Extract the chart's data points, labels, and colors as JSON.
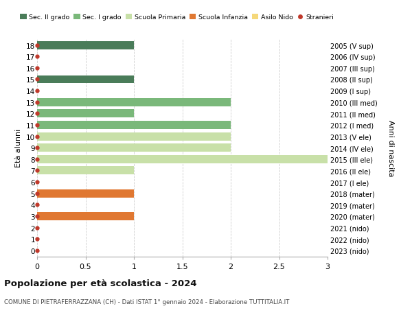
{
  "ages": [
    18,
    17,
    16,
    15,
    14,
    13,
    12,
    11,
    10,
    9,
    8,
    7,
    6,
    5,
    4,
    3,
    2,
    1,
    0
  ],
  "right_labels": [
    "2005 (V sup)",
    "2006 (IV sup)",
    "2007 (III sup)",
    "2008 (II sup)",
    "2009 (I sup)",
    "2010 (III med)",
    "2011 (II med)",
    "2012 (I med)",
    "2013 (V ele)",
    "2014 (IV ele)",
    "2015 (III ele)",
    "2016 (II ele)",
    "2017 (I ele)",
    "2018 (mater)",
    "2019 (mater)",
    "2020 (mater)",
    "2021 (nido)",
    "2022 (nido)",
    "2023 (nido)"
  ],
  "bars": [
    {
      "age": 18,
      "value": 1.0,
      "color": "#4a7c59"
    },
    {
      "age": 15,
      "value": 1.0,
      "color": "#4a7c59"
    },
    {
      "age": 13,
      "value": 2.0,
      "color": "#7ab87a"
    },
    {
      "age": 12,
      "value": 1.0,
      "color": "#7ab87a"
    },
    {
      "age": 11,
      "value": 2.0,
      "color": "#7ab87a"
    },
    {
      "age": 10,
      "value": 2.0,
      "color": "#c8e0a8"
    },
    {
      "age": 9,
      "value": 2.0,
      "color": "#c8e0a8"
    },
    {
      "age": 8,
      "value": 3.0,
      "color": "#c8e0a8"
    },
    {
      "age": 7,
      "value": 1.0,
      "color": "#c8e0a8"
    },
    {
      "age": 5,
      "value": 1.0,
      "color": "#e07832"
    },
    {
      "age": 3,
      "value": 1.0,
      "color": "#e07832"
    }
  ],
  "stranieri_ages": [
    18,
    17,
    16,
    15,
    14,
    13,
    12,
    11,
    10,
    9,
    8,
    7,
    6,
    5,
    4,
    3,
    2,
    1,
    0
  ],
  "colors": {
    "sec2": "#4a7c59",
    "sec1": "#7ab87a",
    "primaria": "#c8e0a8",
    "infanzia": "#e07832",
    "nido": "#f5d87a",
    "stranieri": "#c0392b"
  },
  "legend_labels": [
    "Sec. II grado",
    "Sec. I grado",
    "Scuola Primaria",
    "Scuola Infanzia",
    "Asilo Nido",
    "Stranieri"
  ],
  "legend_colors": [
    "#4a7c59",
    "#7ab87a",
    "#c8e0a8",
    "#e07832",
    "#f5d87a",
    "#c0392b"
  ],
  "title": "Popolazione per età scolastica - 2024",
  "subtitle": "COMUNE DI PIETRAFERRAZZANA (CH) - Dati ISTAT 1° gennaio 2024 - Elaborazione TUTTITALIA.IT",
  "ylabel_left": "Età alunni",
  "ylabel_right": "Anni di nascita",
  "xlim": [
    0,
    3.0
  ],
  "xticks": [
    0,
    0.5,
    1.0,
    1.5,
    2.0,
    2.5,
    3.0
  ],
  "bar_height": 0.72,
  "bg_color": "#ffffff",
  "grid_color": "#cccccc",
  "ylim_min": -0.55,
  "ylim_max": 18.55
}
